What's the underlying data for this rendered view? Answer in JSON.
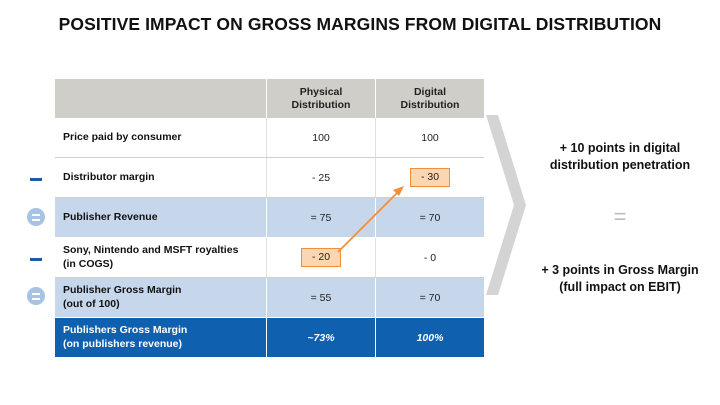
{
  "title": "POSITIVE IMPACT ON GROSS MARGINS FROM DIGITAL DISTRIBUTION",
  "table": {
    "headers": [
      "",
      "Physical\nDistribution",
      "Digital\nDistribution"
    ],
    "rows": [
      {
        "label": "Price paid by consumer",
        "physical": "100",
        "digital": "100"
      },
      {
        "label": "Distributor margin",
        "physical": "- 25",
        "digital": "- 30"
      },
      {
        "label": "Publisher Revenue",
        "physical": "= 75",
        "digital": "= 70"
      },
      {
        "label": "Sony, Nintendo and MSFT royalties\n(in COGS)",
        "physical": "- 20",
        "digital": "- 0"
      },
      {
        "label": "Publisher Gross Margin\n(out of 100)",
        "physical": "= 55",
        "digital": "= 70"
      },
      {
        "label": "Publishers Gross Margin\n(on publishers revenue)",
        "physical": "~73%",
        "digital": "100%"
      }
    ]
  },
  "right": {
    "line1": "+ 10 points in digital distribution penetration",
    "equals": "=",
    "line2": "+ 3 points in Gross Margin (full impact on EBIT)"
  },
  "colors": {
    "header_bg": "#d0cec8",
    "blue_row": "#c6d7ec",
    "final_row": "#1060b0",
    "highlight": "#f0903a",
    "operator": "#1c5cab"
  }
}
